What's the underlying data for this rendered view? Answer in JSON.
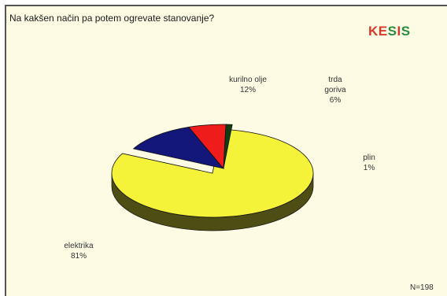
{
  "title": "Na kakšen način pa potem ogrevate stanovanje?",
  "logo": {
    "k": "K",
    "e": "E",
    "s1": "S",
    "i": "I",
    "s2": "S"
  },
  "n_note": "N=198",
  "colors": {
    "elektrika": "#f5f23a",
    "kurilno_olje": "#13177a",
    "trda_goriva": "#ef1c1c",
    "plin": "#0f3d10"
  },
  "chart_data": {
    "type": "pie",
    "title": "Na kakšen način pa potem ogrevate stanovanje?",
    "slices": [
      {
        "label": "elektrika",
        "value": 81,
        "value_label": "81%"
      },
      {
        "label": "kurilno olje",
        "value": 12,
        "value_label": "12%"
      },
      {
        "label": "trda goriva",
        "value": 6,
        "value_label": "6%"
      },
      {
        "label": "plin",
        "value": 1,
        "value_label": "1%"
      }
    ],
    "labels": {
      "elektrika": [
        "elektrika",
        "81%"
      ],
      "kurilno_olje": [
        "kurilno olje",
        "12%"
      ],
      "trda_goriva": [
        "trda",
        "goriva",
        "6%"
      ],
      "plin": [
        "plin",
        "1%"
      ]
    }
  }
}
